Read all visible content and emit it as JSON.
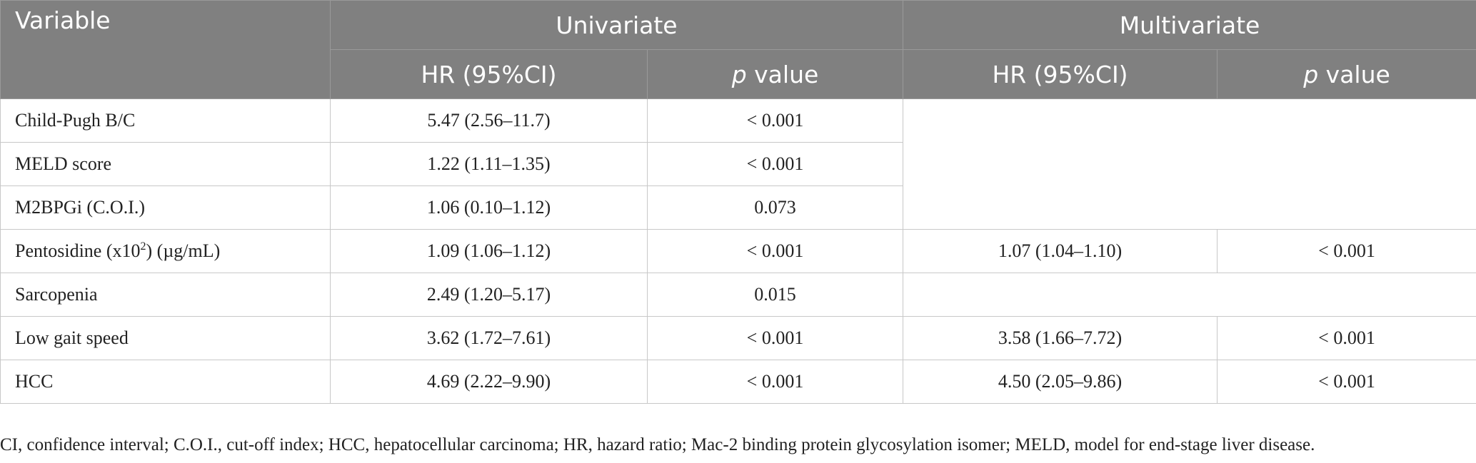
{
  "header": {
    "variable": "Variable",
    "univariate": "Univariate",
    "multivariate": "Multivariate",
    "hr": "HR (95%CI)",
    "p_italic": "p",
    "p_rest": " value"
  },
  "rows": [
    {
      "label": "Child-Pugh B/C",
      "uni_hr": "5.47 (2.56–11.7)",
      "uni_p": "< 0.001"
    },
    {
      "label": "MELD score",
      "uni_hr": "1.22 (1.11–1.35)",
      "uni_p": "< 0.001"
    },
    {
      "label": "M2BPGi (C.O.I.)",
      "uni_hr": "1.06 (0.10–1.12)",
      "uni_p": "0.073"
    },
    {
      "label_pre": "Pentosidine (x10",
      "label_sup": "2",
      "label_post": ") (µg/mL)",
      "uni_hr": "1.09 (1.06–1.12)",
      "uni_p": "< 0.001",
      "multi_hr": "1.07 (1.04–1.10)",
      "multi_p": "< 0.001"
    },
    {
      "label": "Sarcopenia",
      "uni_hr": "2.49 (1.20–5.17)",
      "uni_p": "0.015"
    },
    {
      "label": "Low gait speed",
      "uni_hr": "3.62 (1.72–7.61)",
      "uni_p": "< 0.001",
      "multi_hr": "3.58 (1.66–7.72)",
      "multi_p": "< 0.001"
    },
    {
      "label": "HCC",
      "uni_hr": "4.69 (2.22–9.90)",
      "uni_p": "< 0.001",
      "multi_hr": "4.50 (2.05–9.86)",
      "multi_p": "< 0.001"
    }
  ],
  "footnote": "CI, confidence interval; C.O.I., cut-off index; HCC, hepatocellular carcinoma; HR, hazard ratio; Mac-2 binding protein glycosylation isomer; MELD, model for end-stage liver disease."
}
